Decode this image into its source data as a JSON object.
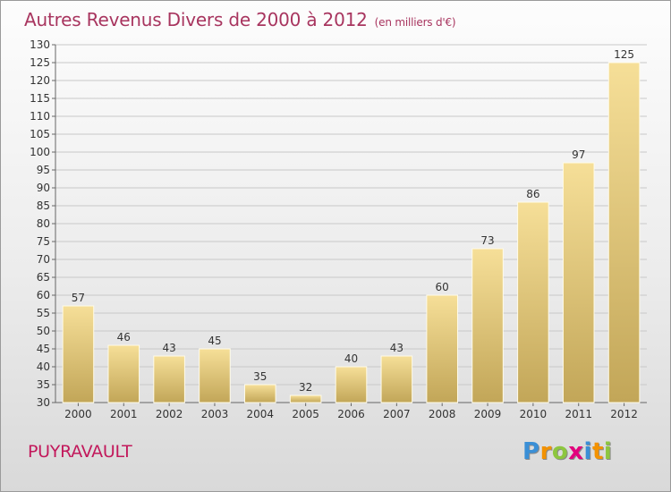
{
  "header": {
    "title": "Autres Revenus Divers de 2000 à 2012",
    "unit": "(en milliers d'€)"
  },
  "footer": {
    "commune": "PUYRAVAULT",
    "logo": {
      "letters": [
        "P",
        "r",
        "o",
        "x",
        "i",
        "t",
        "i"
      ],
      "colors": [
        "#3a8fd6",
        "#f39200",
        "#8dc63f",
        "#e3007d",
        "#3a8fd6",
        "#f39200",
        "#8dc63f"
      ]
    }
  },
  "colors": {
    "title": "#a8355f",
    "commune": "#c2185b",
    "bar_top": "#f6df98",
    "bar_bottom": "#c2a658"
  },
  "chart_data": {
    "type": "bar",
    "title": "Autres Revenus Divers de 2000 à 2012",
    "subtitle": "(en milliers d'€)",
    "xlabel": "",
    "ylabel": "",
    "categories": [
      "2000",
      "2001",
      "2002",
      "2003",
      "2004",
      "2005",
      "2006",
      "2007",
      "2008",
      "2009",
      "2010",
      "2011",
      "2012"
    ],
    "values": [
      57,
      46,
      43,
      45,
      35,
      32,
      40,
      43,
      60,
      73,
      86,
      97,
      125
    ],
    "ylim": [
      30,
      130
    ],
    "yticks": [
      30,
      35,
      40,
      45,
      50,
      55,
      60,
      65,
      70,
      75,
      80,
      85,
      90,
      95,
      100,
      105,
      110,
      115,
      120,
      125,
      130
    ],
    "grid": true,
    "legend": "none"
  }
}
